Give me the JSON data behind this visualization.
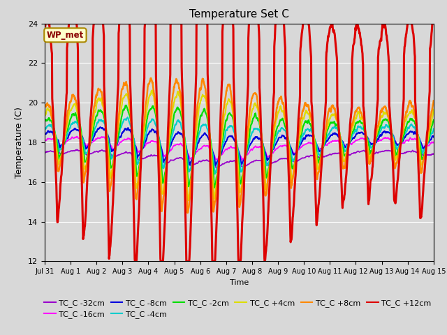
{
  "title": "Temperature Set C",
  "xlabel": "Time",
  "ylabel": "Temperature (C)",
  "ylim": [
    12,
    24
  ],
  "yticks": [
    12,
    14,
    16,
    18,
    20,
    22,
    24
  ],
  "bg_color": "#d8d8d8",
  "plot_bg_color": "#d8d8d8",
  "annotation_text": "WP_met",
  "annotation_bg": "#ffffcc",
  "annotation_border": "#aa8800",
  "series": [
    {
      "label": "TC_C -32cm",
      "color": "#9900cc",
      "lw": 1.2
    },
    {
      "label": "TC_C -16cm",
      "color": "#ff00ff",
      "lw": 1.2
    },
    {
      "label": "TC_C -8cm",
      "color": "#0000dd",
      "lw": 1.5
    },
    {
      "label": "TC_C -4cm",
      "color": "#00cccc",
      "lw": 1.5
    },
    {
      "label": "TC_C -2cm",
      "color": "#00dd00",
      "lw": 1.5
    },
    {
      "label": "TC_C +4cm",
      "color": "#dddd00",
      "lw": 1.5
    },
    {
      "label": "TC_C +8cm",
      "color": "#ff8800",
      "lw": 1.8
    },
    {
      "label": "TC_C +12cm",
      "color": "#dd0000",
      "lw": 2.2
    }
  ],
  "xtick_positions": [
    0,
    1,
    2,
    3,
    4,
    5,
    6,
    7,
    8,
    9,
    10,
    11,
    12,
    13,
    14,
    15
  ],
  "xtick_labels": [
    "Jul 31",
    "Aug 1",
    "Aug 2",
    "Aug 3",
    "Aug 4",
    "Aug 5",
    "Aug 6",
    "Aug 7",
    "Aug 8",
    "Aug 9",
    "Aug 10",
    "Aug 11",
    "Aug 12",
    "Aug 13",
    "Aug 14",
    "Aug 15"
  ]
}
